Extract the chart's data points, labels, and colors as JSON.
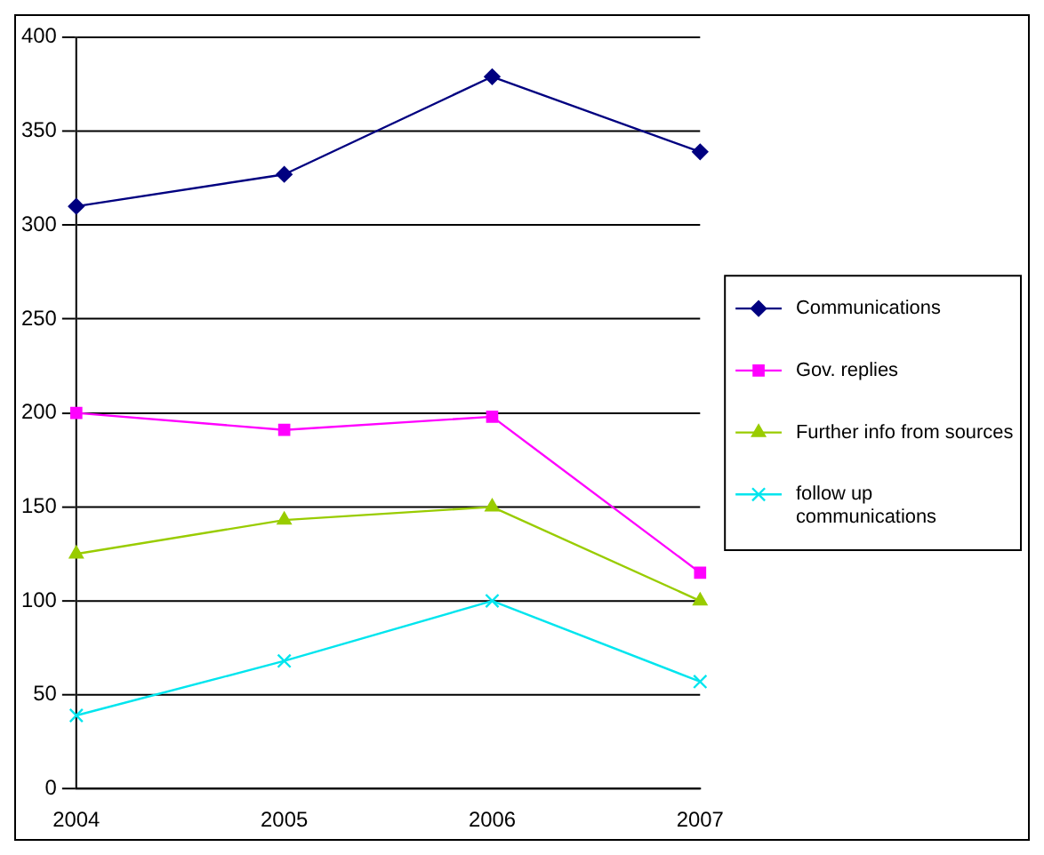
{
  "chart_data": {
    "type": "line",
    "categories": [
      "2004",
      "2005",
      "2006",
      "2007"
    ],
    "ylim": [
      0,
      400
    ],
    "yticks": [
      0,
      50,
      100,
      150,
      200,
      250,
      300,
      350,
      400
    ],
    "grid": "y",
    "legend": "right",
    "series": [
      {
        "name": "Communications",
        "color": "#000080",
        "marker": "diamond",
        "values": [
          310,
          327,
          379,
          339
        ]
      },
      {
        "name": "Gov. replies",
        "color": "#ff00ff",
        "marker": "square",
        "values": [
          200,
          191,
          198,
          115
        ]
      },
      {
        "name": "Further info from sources",
        "color": "#99cc00",
        "marker": "triangle",
        "values": [
          125,
          143,
          150,
          100
        ]
      },
      {
        "name": "follow up communications",
        "color": "#00e5ee",
        "marker": "cross",
        "values": [
          39,
          68,
          100,
          57
        ]
      }
    ]
  }
}
